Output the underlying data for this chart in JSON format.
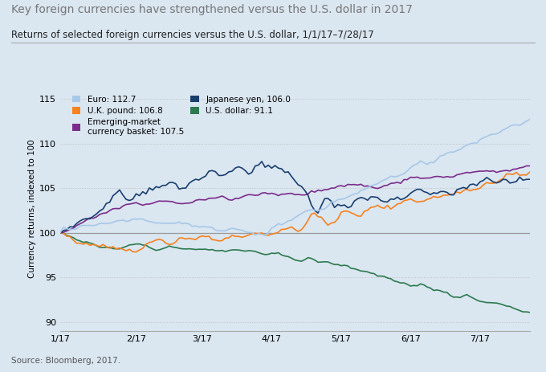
{
  "title": "Key foreign currencies have strengthened versus the U.S. dollar in 2017",
  "subtitle": "Returns of selected foreign currencies versus the U.S. dollar, 1/1/17–7/28/17",
  "ylabel": "Currency returns, indexed to 100",
  "source": "Source: Bloomberg, 2017.",
  "background_color": "#dae6f0",
  "ylim": [
    89,
    116.5
  ],
  "yticks": [
    90,
    95,
    100,
    105,
    110,
    115
  ],
  "xtick_labels": [
    "1/17",
    "2/17",
    "3/17",
    "4/17",
    "5/17",
    "6/17",
    "7/17"
  ],
  "xtick_pos": [
    0,
    23,
    43,
    64,
    85,
    106,
    127
  ],
  "n_points": 143,
  "series": {
    "euro": {
      "label": "Euro: 112.7",
      "color": "#a8c8e8",
      "lw": 1.2
    },
    "uk_pound": {
      "label": "U.K. pound: 106.8",
      "color": "#f58220",
      "lw": 1.2
    },
    "em_basket": {
      "label": "Emerging-market\ncurrency basket: 107.5",
      "color": "#7b2d8b",
      "lw": 1.2
    },
    "jpy": {
      "label": "Japanese yen, 106.0",
      "color": "#1a3f6f",
      "lw": 1.2
    },
    "usd": {
      "label": "U.S. dollar: 91.1",
      "color": "#2d7a4f",
      "lw": 1.2
    }
  }
}
